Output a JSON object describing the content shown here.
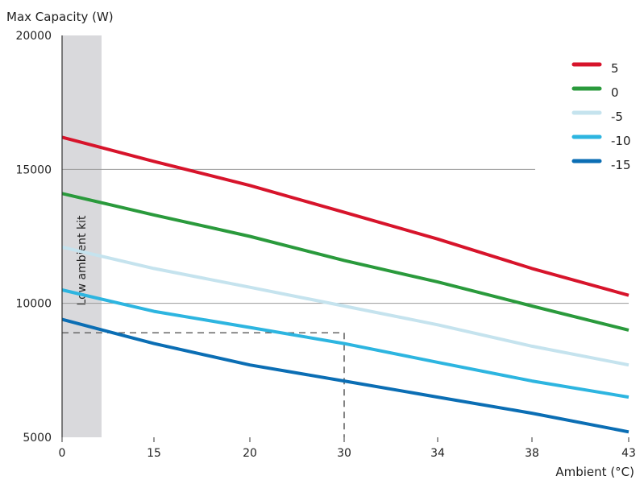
{
  "chart_data": {
    "type": "line",
    "ylabel": "Max Capacity (W)",
    "xlabel": "Ambient (°C)",
    "x_ticks": [
      "0",
      "15",
      "20",
      "30",
      "34",
      "38",
      "43"
    ],
    "y_ticks": [
      5000,
      10000,
      15000,
      20000
    ],
    "ylim": [
      5000,
      20000
    ],
    "legend_position": "top-right",
    "grid": "horizontal lines at 10000 and 15000",
    "band": {
      "label": "Low ambient kit",
      "x_from": "0",
      "x_to": "between 0 and 15",
      "color": "#d9d9dc"
    },
    "reference": {
      "x": "30",
      "y": 8900,
      "style": "dashed",
      "color": "#666666"
    },
    "series": [
      {
        "name": "5",
        "color": "#d7142b",
        "x": [
          "0",
          "15",
          "20",
          "30",
          "34",
          "38",
          "43"
        ],
        "y": [
          16200,
          15300,
          14400,
          13400,
          12400,
          11300,
          10300
        ]
      },
      {
        "name": "0",
        "color": "#2a9a3c",
        "x": [
          "0",
          "15",
          "20",
          "30",
          "34",
          "38",
          "43"
        ],
        "y": [
          14100,
          13300,
          12500,
          11600,
          10800,
          9900,
          9000
        ]
      },
      {
        "name": "-5",
        "color": "#c5e3ee",
        "x": [
          "0",
          "15",
          "20",
          "30",
          "34",
          "38",
          "43"
        ],
        "y": [
          12100,
          11300,
          10600,
          9900,
          9200,
          8400,
          7700
        ]
      },
      {
        "name": "-10",
        "color": "#2db5e0",
        "x": [
          "0",
          "15",
          "20",
          "30",
          "34",
          "38",
          "43"
        ],
        "y": [
          10500,
          9700,
          9100,
          8500,
          7800,
          7100,
          6500
        ]
      },
      {
        "name": "-15",
        "color": "#0b6eb4",
        "x": [
          "0",
          "15",
          "20",
          "30",
          "34",
          "38",
          "43"
        ],
        "y": [
          9400,
          8500,
          7700,
          7100,
          6500,
          5900,
          5200
        ]
      }
    ]
  }
}
